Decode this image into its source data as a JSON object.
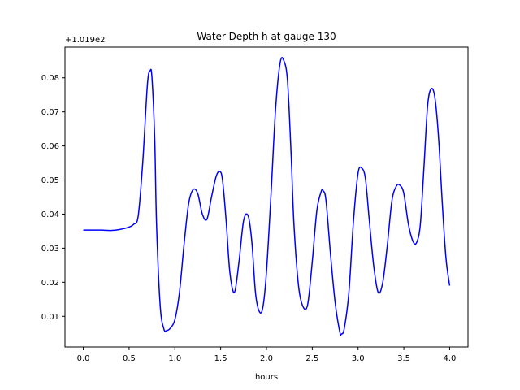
{
  "chart_data": {
    "type": "line",
    "title": "Water Depth h at gauge 130",
    "xlabel": "hours",
    "ylabel": "",
    "offset_label": "+1.019e2",
    "xlim": [
      -0.2,
      4.2
    ],
    "ylim": [
      0.001,
      0.089
    ],
    "xticks": [
      0.0,
      0.5,
      1.0,
      1.5,
      2.0,
      2.5,
      3.0,
      3.5,
      4.0
    ],
    "xtick_labels": [
      "0.0",
      "0.5",
      "1.0",
      "1.5",
      "2.0",
      "2.5",
      "3.0",
      "3.5",
      "4.0"
    ],
    "yticks": [
      0.01,
      0.02,
      0.03,
      0.04,
      0.05,
      0.06,
      0.07,
      0.08
    ],
    "ytick_labels": [
      "0.01",
      "0.02",
      "0.03",
      "0.04",
      "0.05",
      "0.06",
      "0.07",
      "0.08"
    ],
    "grid": false,
    "line_color": "#0000ff",
    "series": [
      {
        "x": [
          0.0,
          0.1,
          0.2,
          0.3,
          0.4,
          0.5,
          0.55,
          0.6,
          0.65,
          0.7,
          0.73,
          0.75,
          0.78,
          0.8,
          0.84,
          0.88,
          0.91,
          0.95,
          1.0,
          1.05,
          1.1,
          1.15,
          1.2,
          1.25,
          1.3,
          1.35,
          1.4,
          1.45,
          1.49,
          1.52,
          1.56,
          1.6,
          1.65,
          1.7,
          1.75,
          1.8,
          1.84,
          1.88,
          1.92,
          1.96,
          2.0,
          2.05,
          2.1,
          2.15,
          2.19,
          2.23,
          2.27,
          2.3,
          2.35,
          2.4,
          2.45,
          2.5,
          2.55,
          2.6,
          2.62,
          2.65,
          2.7,
          2.75,
          2.8,
          2.82,
          2.85,
          2.9,
          2.95,
          3.0,
          3.04,
          3.08,
          3.12,
          3.17,
          3.22,
          3.27,
          3.32,
          3.37,
          3.42,
          3.46,
          3.5,
          3.55,
          3.6,
          3.64,
          3.68,
          3.72,
          3.76,
          3.8,
          3.84,
          3.88,
          3.92,
          3.96,
          4.0
        ],
        "y": [
          0.0353,
          0.0353,
          0.0353,
          0.0352,
          0.0355,
          0.0362,
          0.037,
          0.0395,
          0.0555,
          0.078,
          0.0821,
          0.08,
          0.062,
          0.037,
          0.013,
          0.0063,
          0.0058,
          0.0065,
          0.009,
          0.017,
          0.031,
          0.043,
          0.0472,
          0.046,
          0.04,
          0.0385,
          0.045,
          0.051,
          0.0525,
          0.05,
          0.038,
          0.023,
          0.017,
          0.026,
          0.038,
          0.0395,
          0.032,
          0.017,
          0.0115,
          0.0125,
          0.023,
          0.046,
          0.071,
          0.0845,
          0.085,
          0.079,
          0.057,
          0.037,
          0.019,
          0.0128,
          0.0135,
          0.026,
          0.041,
          0.0468,
          0.0468,
          0.044,
          0.028,
          0.014,
          0.0055,
          0.0048,
          0.0065,
          0.017,
          0.038,
          0.052,
          0.0535,
          0.0505,
          0.039,
          0.025,
          0.017,
          0.02,
          0.031,
          0.044,
          0.0483,
          0.0484,
          0.046,
          0.037,
          0.032,
          0.0317,
          0.037,
          0.054,
          0.072,
          0.0768,
          0.074,
          0.062,
          0.043,
          0.027,
          0.019
        ]
      }
    ]
  }
}
